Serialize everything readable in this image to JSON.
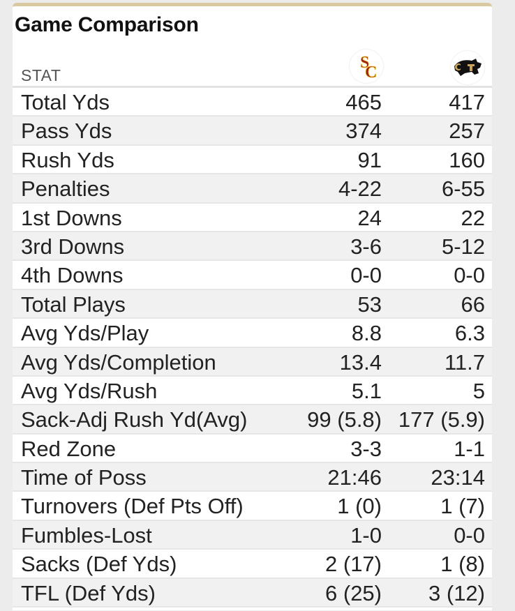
{
  "title": "Game Comparison",
  "header": {
    "stat_label": "STAT",
    "team1_logo": "sc-logo-icon",
    "team2_logo": "cu-buffalo-logo-icon"
  },
  "colors": {
    "accent_bar": "#d8c9a0",
    "sc_red": "#9b1c1c",
    "sc_gold": "#f2c230",
    "cu_gold": "#c9a45a"
  },
  "stats": [
    {
      "label": "Total Yds",
      "team1": "465",
      "team2": "417"
    },
    {
      "label": "Pass Yds",
      "team1": "374",
      "team2": "257"
    },
    {
      "label": "Rush Yds",
      "team1": "91",
      "team2": "160"
    },
    {
      "label": "Penalties",
      "team1": "4-22",
      "team2": "6-55"
    },
    {
      "label": "1st Downs",
      "team1": "24",
      "team2": "22"
    },
    {
      "label": "3rd Downs",
      "team1": "3-6",
      "team2": "5-12"
    },
    {
      "label": "4th Downs",
      "team1": "0-0",
      "team2": "0-0"
    },
    {
      "label": "Total Plays",
      "team1": "53",
      "team2": "66"
    },
    {
      "label": "Avg Yds/Play",
      "team1": "8.8",
      "team2": "6.3"
    },
    {
      "label": "Avg Yds/Completion",
      "team1": "13.4",
      "team2": "11.7"
    },
    {
      "label": "Avg Yds/Rush",
      "team1": "5.1",
      "team2": "5"
    },
    {
      "label": "Sack-Adj Rush Yd(Avg)",
      "team1": "99 (5.8)",
      "team2": "177 (5.9)"
    },
    {
      "label": "Red Zone",
      "team1": "3-3",
      "team2": "1-1"
    },
    {
      "label": "Time of Poss",
      "team1": "21:46",
      "team2": "23:14"
    },
    {
      "label": "Turnovers (Def Pts Off)",
      "team1": "1 (0)",
      "team2": "1 (7)"
    },
    {
      "label": "Fumbles-Lost",
      "team1": "1-0",
      "team2": "0-0"
    },
    {
      "label": "Sacks (Def Yds)",
      "team1": "2 (17)",
      "team2": "1 (8)"
    },
    {
      "label": "TFL (Def Yds)",
      "team1": "6 (25)",
      "team2": "3 (12)"
    }
  ]
}
